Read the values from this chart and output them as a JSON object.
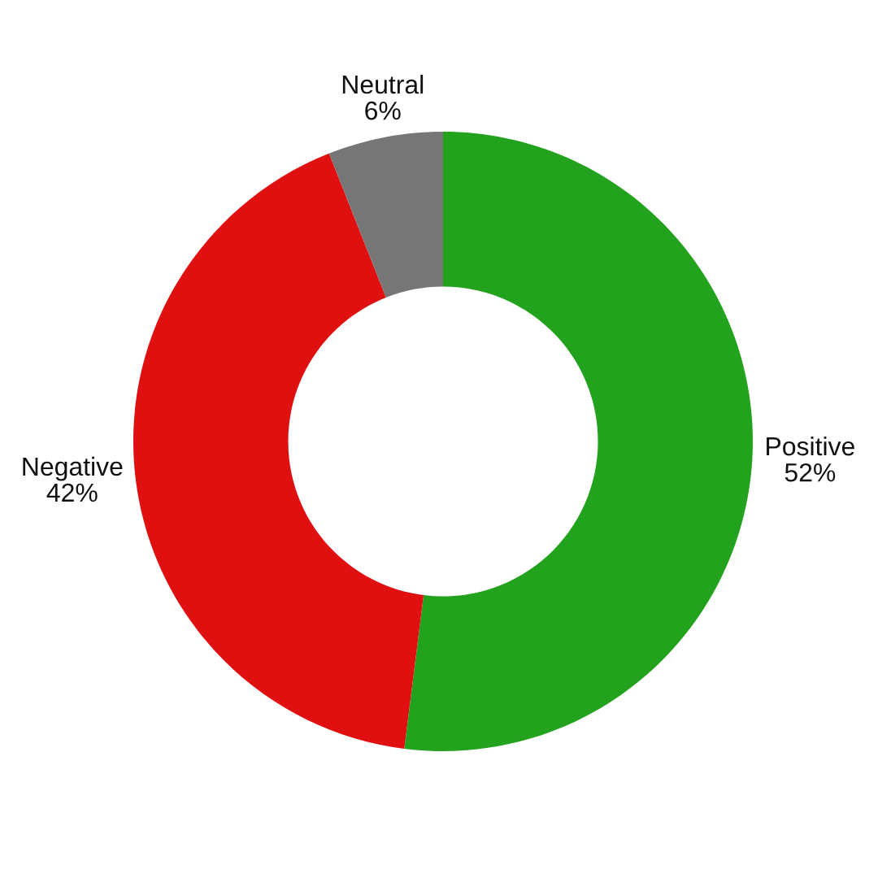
{
  "chart_data": {
    "type": "donut",
    "categories": [
      "Positive",
      "Negative",
      "Neutral"
    ],
    "values": [
      52,
      42,
      6
    ],
    "colors": [
      "#23a21d",
      "#e00f10",
      "#767676"
    ],
    "value_labels": [
      "52%",
      "42%",
      "6%"
    ]
  }
}
